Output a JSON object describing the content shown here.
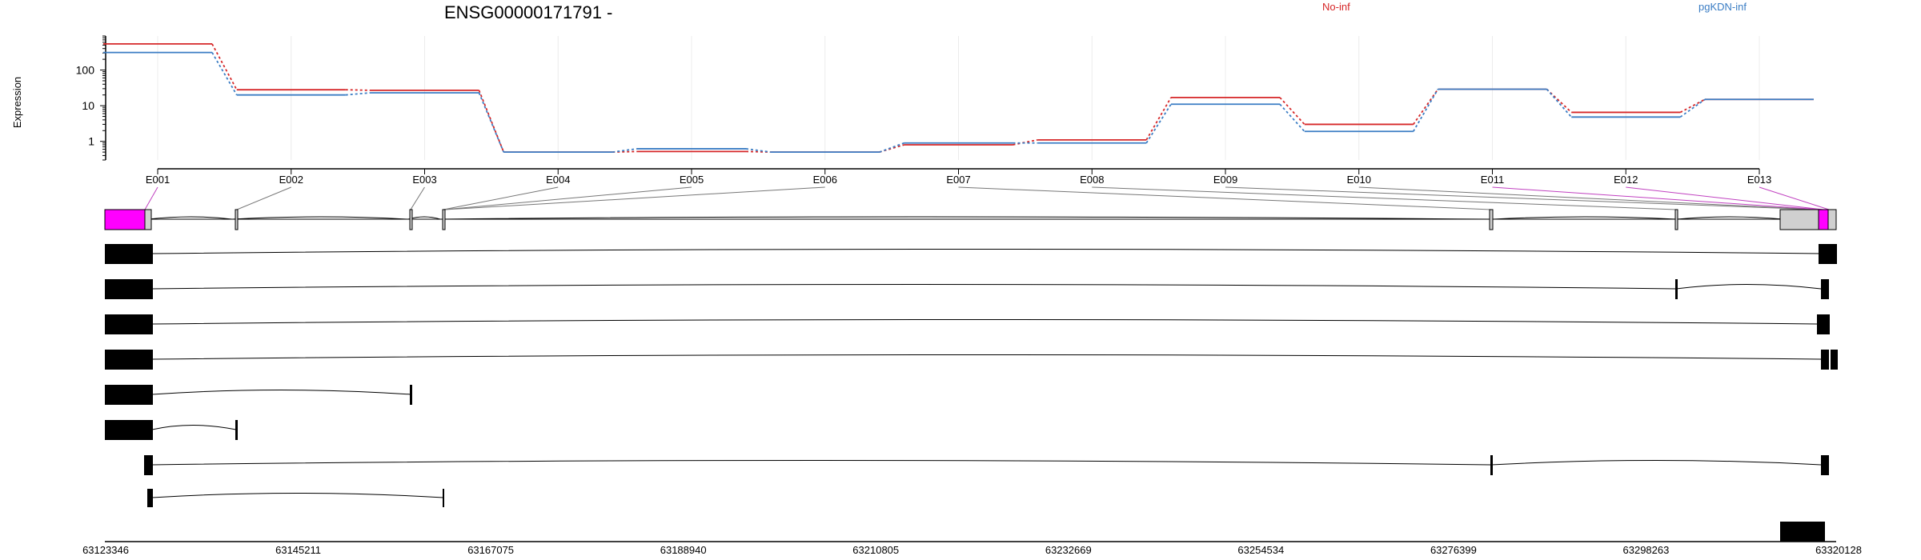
{
  "header": {
    "gene_title": "ENSG00000171791 -",
    "legend": [
      {
        "label": "No-inf",
        "color": "#d62728"
      },
      {
        "label": "pgKDN-inf",
        "color": "#3b7dc4"
      }
    ]
  },
  "chart_data": {
    "type": "line",
    "title": "ENSG00000171791 -",
    "ylabel": "Expression",
    "xlabel": "",
    "yscale": "log",
    "ylim": [
      0.3,
      900
    ],
    "yticks": [
      "1",
      "10",
      "100"
    ],
    "grid": "vertical",
    "legend_position": "top-right",
    "categories": [
      "E001",
      "E002",
      "E003",
      "E004",
      "E005",
      "E006",
      "E007",
      "E008",
      "E009",
      "E010",
      "E011",
      "E012",
      "E013"
    ],
    "series": [
      {
        "name": "No-inf",
        "color": "#d62728",
        "values": [
          540,
          28,
          27,
          0.5,
          0.52,
          0.5,
          0.8,
          1.1,
          17,
          3,
          29,
          6.5,
          15
        ]
      },
      {
        "name": "pgKDN-inf",
        "color": "#3b7dc4",
        "values": [
          310,
          20,
          23,
          0.5,
          0.62,
          0.5,
          0.9,
          0.9,
          11,
          1.9,
          29,
          4.8,
          15
        ]
      }
    ]
  },
  "gene_model": {
    "coordinate_ticks": [
      "63123346",
      "63145211",
      "63167075",
      "63188940",
      "63210805",
      "63232669",
      "63254534",
      "63276399",
      "63298263",
      "63320128"
    ],
    "coord_start": 63123346,
    "coord_end": 63320128,
    "highlight_color": "#ff00ff",
    "exon_color": "#000000",
    "collapsed_exon_color": "#d0d0d0"
  }
}
